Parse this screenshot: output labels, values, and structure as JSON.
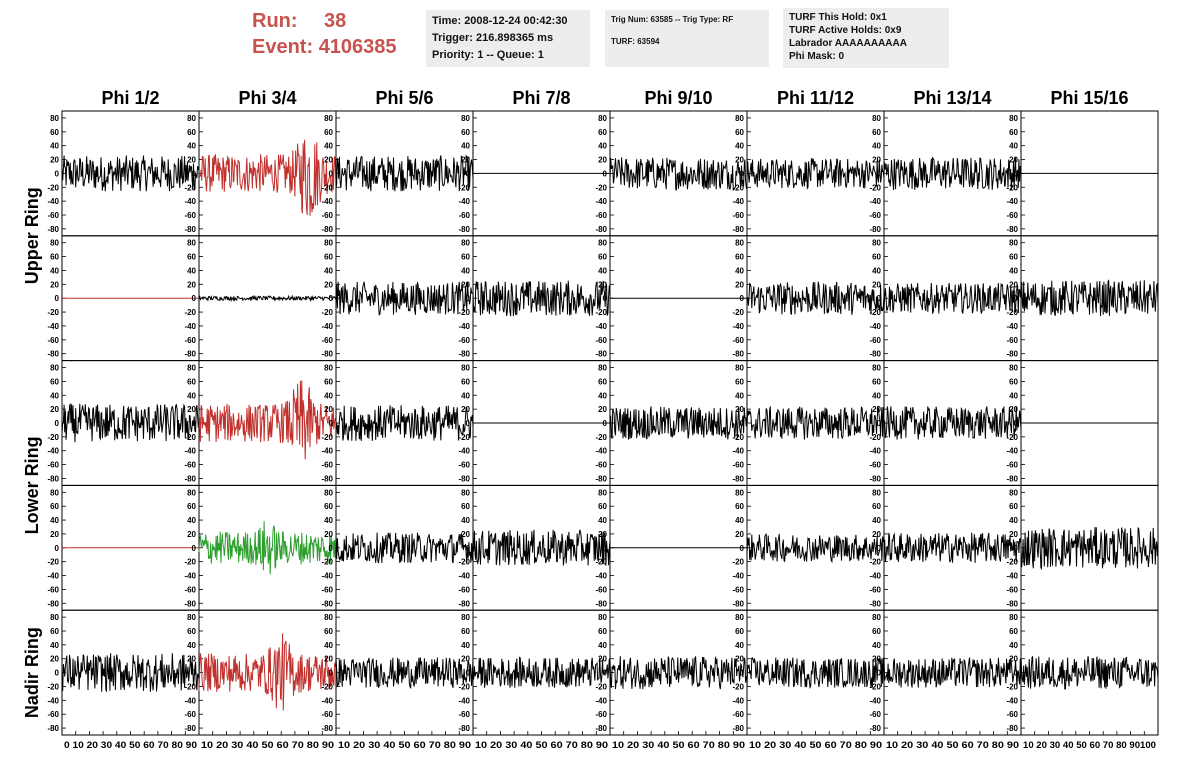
{
  "header": {
    "run_label": "Run:",
    "run_value": "38",
    "event_label": "Event:",
    "event_value": "4106385",
    "time_line": "Time: 2008-12-24 00:42:30",
    "trigger_line": "Trigger: 216.898365 ms",
    "priority_line": "Priority: 1 -- Queue: 1",
    "trig_line": "Trig Num: 63585 -- Trig Type: RF",
    "turf_line": "TURF: 63594",
    "hold_line": "TURF This Hold: 0x1",
    "active_line": "TURF Active Holds: 0x9",
    "labrador_line": "Labrador AAAAAAAAAA",
    "phimask_line": "Phi Mask: 0"
  },
  "colors": {
    "header_red": "#c8524f",
    "info_bg": "#ededed",
    "trace_black": "#000000",
    "trace_red": "#c0302c",
    "trace_green": "#2e9e2e"
  },
  "chart_data": {
    "type": "line",
    "columns": [
      "Phi 1/2",
      "Phi 3/4",
      "Phi 5/6",
      "Phi 7/8",
      "Phi 9/10",
      "Phi 11/12",
      "Phi 13/14",
      "Phi 15/16"
    ],
    "rings": [
      "Upper Ring",
      "Lower Ring",
      "Nadir Ring"
    ],
    "rows_per_ring": [
      2,
      2,
      1
    ],
    "ylim": [
      -90,
      90
    ],
    "yticks": [
      -80,
      -60,
      -40,
      -20,
      0,
      20,
      40,
      60,
      80
    ],
    "xlim": [
      0,
      100
    ],
    "xticks": [
      0,
      10,
      20,
      30,
      40,
      50,
      60,
      70,
      80,
      90
    ],
    "xtick_label_rows": [
      "0 10 20 30 40 50 60 70 80 90",
      "10 20 30 40 50 60 70 80 90",
      "10 20 30 40 50 60 70 80 90",
      "10 20 30 40 50 60 70 80 90",
      "10 20 30 40 50 60 70 80 90",
      "10 20 30 40 50 60 70 80 90",
      "10 20 30 40 50 60 70 80 90",
      "10 20 30 40 50 60 70 80 90100"
    ],
    "panels": [
      [
        {
          "c": "black",
          "a": 26
        },
        {
          "c": "red",
          "a": 28,
          "b": 45,
          "w": 8,
          "p": 80
        },
        {
          "c": "black",
          "a": 26
        },
        {
          "c": "flat"
        },
        {
          "c": "black",
          "a": 24
        },
        {
          "c": "black",
          "a": 22
        },
        {
          "c": "black",
          "a": 24
        },
        {
          "c": "flat"
        }
      ],
      [
        {
          "c": "flatred"
        },
        {
          "c": "black",
          "a": 3
        },
        {
          "c": "black",
          "a": 24
        },
        {
          "c": "black",
          "a": 26
        },
        {
          "c": "flat"
        },
        {
          "c": "black",
          "a": 24
        },
        {
          "c": "black",
          "a": 22
        },
        {
          "c": "black",
          "a": 26
        }
      ],
      [
        {
          "c": "black",
          "a": 28
        },
        {
          "c": "red",
          "a": 28,
          "b": 38,
          "w": 8,
          "p": 75
        },
        {
          "c": "black",
          "a": 26
        },
        {
          "c": "flat"
        },
        {
          "c": "black",
          "a": 24
        },
        {
          "c": "black",
          "a": 24
        },
        {
          "c": "black",
          "a": 24
        },
        {
          "c": "flat"
        }
      ],
      [
        {
          "c": "flatred"
        },
        {
          "c": "green",
          "a": 24,
          "b": 20,
          "w": 6,
          "p": 50
        },
        {
          "c": "black",
          "a": 22
        },
        {
          "c": "black",
          "a": 26
        },
        {
          "c": "flat"
        },
        {
          "c": "black",
          "a": 20
        },
        {
          "c": "black",
          "a": 22
        },
        {
          "c": "black",
          "a": 30
        }
      ],
      [
        {
          "c": "black",
          "a": 28
        },
        {
          "c": "red",
          "a": 28,
          "b": 30,
          "w": 8,
          "p": 60
        },
        {
          "c": "black",
          "a": 22
        },
        {
          "c": "black",
          "a": 22
        },
        {
          "c": "black",
          "a": 24
        },
        {
          "c": "black",
          "a": 22
        },
        {
          "c": "black",
          "a": 22
        },
        {
          "c": "black",
          "a": 24
        }
      ]
    ]
  }
}
